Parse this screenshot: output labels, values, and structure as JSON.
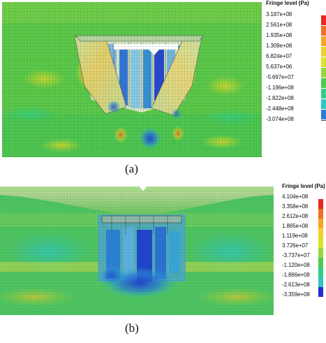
{
  "figure": {
    "panel_a": {
      "caption": "(a)",
      "legend": {
        "title": "Fringe level (Pa)",
        "levels": [
          {
            "label": "3.187e+08",
            "color": "#e8281e"
          },
          {
            "label": "2.561e+08",
            "color": "#f26e22"
          },
          {
            "label": "1.935e+08",
            "color": "#f5a623"
          },
          {
            "label": "1.309e+08",
            "color": "#f2d22a"
          },
          {
            "label": "6.824e+07",
            "color": "#d6e42a"
          },
          {
            "label": "5.637e+06",
            "color": "#96d83a"
          },
          {
            "label": "-5.697e+07",
            "color": "#4ccb4a"
          },
          {
            "label": "-1.196e+08",
            "color": "#2fcf8a"
          },
          {
            "label": "-1.822e+08",
            "color": "#2ec7c4"
          },
          {
            "label": "-2.448e+08",
            "color": "#2b7fd8"
          },
          {
            "label": "-3.074e+08",
            "color": "#1f2fd0"
          }
        ]
      }
    },
    "panel_b": {
      "caption": "(b)",
      "legend": {
        "title": "Fringe level (Pa)",
        "levels": [
          {
            "label": "4.104e+08",
            "color": "#e8281e"
          },
          {
            "label": "3.358e+08",
            "color": "#f26e22"
          },
          {
            "label": "2.612e+08",
            "color": "#f5a623"
          },
          {
            "label": "1.865e+08",
            "color": "#f2d22a"
          },
          {
            "label": "1.119e+08",
            "color": "#d6e42a"
          },
          {
            "label": "3.726e+07",
            "color": "#96d83a"
          },
          {
            "label": "-3.737e+07",
            "color": "#4ccb4a"
          },
          {
            "label": "-1.120e+08",
            "color": "#2fcf8a"
          },
          {
            "label": "-1.866e+08",
            "color": "#2ec7c4"
          },
          {
            "label": "-2.613e+08",
            "color": "#2b7fd8"
          },
          {
            "label": "-3.359e+08",
            "color": "#1f2fd0"
          }
        ]
      }
    }
  }
}
